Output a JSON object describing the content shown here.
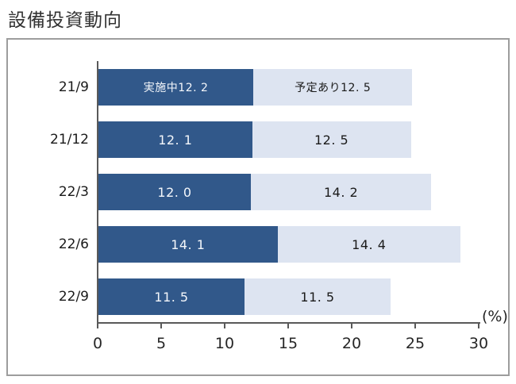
{
  "title": "設備投資動向",
  "colors": {
    "bar_dark": "#31588A",
    "bar_light": "#DDE4F1",
    "axis": "#595959",
    "frame_border": "#9D9D9D",
    "title_text": "#333333",
    "label_text": "#1A1A1A"
  },
  "axis": {
    "tick_labels": [
      "0",
      "5",
      "10",
      "15",
      "20",
      "25",
      "30"
    ],
    "unit_label": "(%)"
  },
  "chart_data": {
    "type": "bar",
    "orientation": "horizontal",
    "stacked": true,
    "title": "設備投資動向",
    "categories": [
      "21/9",
      "21/12",
      "22/3",
      "22/6",
      "22/9"
    ],
    "series": [
      {
        "name": "実施中",
        "values": [
          12.2,
          12.1,
          12.0,
          14.1,
          11.5
        ]
      },
      {
        "name": "予定あり",
        "values": [
          12.5,
          12.5,
          14.2,
          14.4,
          11.5
        ]
      }
    ],
    "bar_display_labels": [
      {
        "dark": "実施中12. 2",
        "light": "予定あり12. 5"
      },
      {
        "dark": "12. 1",
        "light": "12. 5"
      },
      {
        "dark": "12. 0",
        "light": "14. 2"
      },
      {
        "dark": "14. 1",
        "light": "14. 4"
      },
      {
        "dark": "11. 5",
        "light": "11. 5"
      }
    ],
    "xlabel": "(%)",
    "xlim": [
      0,
      30
    ],
    "x_ticks": [
      0,
      5,
      10,
      15,
      20,
      25,
      30
    ],
    "grid": false,
    "legend": "labels-inside-first-bar"
  }
}
